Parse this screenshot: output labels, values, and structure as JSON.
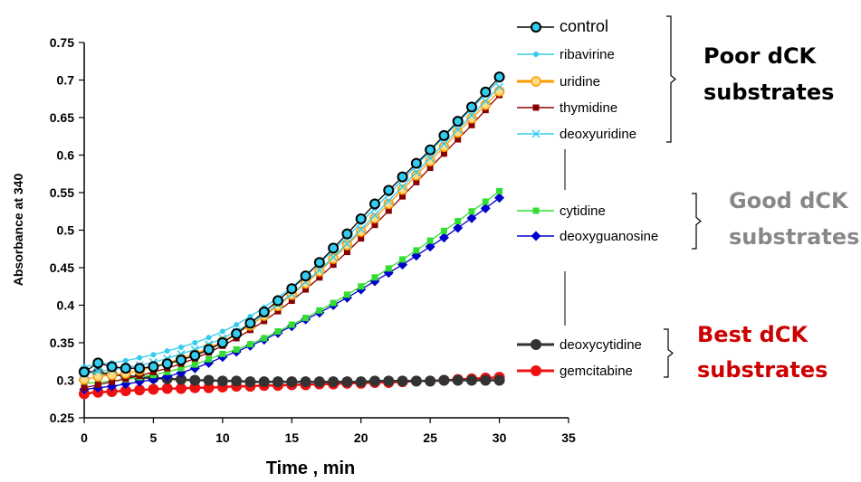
{
  "chart_data": {
    "type": "line",
    "xlabel": "Time , min",
    "ylabel": "Absorbance at 340",
    "xlim": [
      0,
      35
    ],
    "ylim": [
      0.25,
      0.75
    ],
    "xticks": [
      "0",
      "5",
      "10",
      "15",
      "20",
      "25",
      "30",
      "35"
    ],
    "yticks": [
      "0.25",
      "0.3",
      "0.35",
      "0.4",
      "0.45",
      "0.5",
      "0.55",
      "0.6",
      "0.65",
      "0.7",
      "0.75"
    ],
    "grid": false,
    "x": [
      0,
      1,
      2,
      3,
      4,
      5,
      6,
      7,
      8,
      9,
      10,
      11,
      12,
      13,
      14,
      15,
      16,
      17,
      18,
      19,
      20,
      21,
      22,
      23,
      24,
      25,
      26,
      27,
      28,
      29,
      30
    ],
    "series": [
      {
        "name": "control",
        "color": "#000000",
        "marker": "circle",
        "values": [
          0.311,
          0.323,
          0.318,
          0.316,
          0.316,
          0.318,
          0.322,
          0.327,
          0.333,
          0.341,
          0.35,
          0.362,
          0.376,
          0.391,
          0.406,
          0.422,
          0.439,
          0.457,
          0.476,
          0.495,
          0.515,
          0.535,
          0.553,
          0.571,
          0.589,
          0.607,
          0.626,
          0.645,
          0.664,
          0.684,
          0.704
        ]
      },
      {
        "name": "ribavirine",
        "color": "#33ccee",
        "marker": "small-circle",
        "values": [
          0.318,
          0.322,
          0.323,
          0.326,
          0.33,
          0.334,
          0.339,
          0.344,
          0.35,
          0.357,
          0.365,
          0.374,
          0.385,
          0.397,
          0.41,
          0.424,
          0.44,
          0.456,
          0.473,
          0.491,
          0.51,
          0.529,
          0.548,
          0.567,
          0.586,
          0.605,
          0.624,
          0.643,
          0.662,
          0.681,
          0.7
        ]
      },
      {
        "name": "uridine",
        "color": "#ff9900",
        "marker": "circle-orange",
        "values": [
          0.301,
          0.305,
          0.307,
          0.309,
          0.313,
          0.318,
          0.323,
          0.329,
          0.335,
          0.343,
          0.352,
          0.362,
          0.373,
          0.386,
          0.399,
          0.414,
          0.429,
          0.445,
          0.462,
          0.48,
          0.498,
          0.516,
          0.535,
          0.554,
          0.573,
          0.592,
          0.611,
          0.63,
          0.649,
          0.667,
          0.685
        ]
      },
      {
        "name": "thymidine",
        "color": "#880000",
        "marker": "square",
        "values": [
          0.29,
          0.294,
          0.298,
          0.302,
          0.306,
          0.311,
          0.316,
          0.322,
          0.329,
          0.337,
          0.346,
          0.356,
          0.367,
          0.379,
          0.392,
          0.406,
          0.421,
          0.437,
          0.454,
          0.471,
          0.489,
          0.507,
          0.526,
          0.545,
          0.564,
          0.583,
          0.602,
          0.621,
          0.64,
          0.66,
          0.68
        ]
      },
      {
        "name": "deoxyuridine",
        "color": "#33ccee",
        "marker": "cross",
        "values": [
          0.308,
          0.312,
          0.314,
          0.317,
          0.32,
          0.324,
          0.329,
          0.335,
          0.341,
          0.348,
          0.356,
          0.365,
          0.376,
          0.388,
          0.401,
          0.415,
          0.431,
          0.447,
          0.464,
          0.482,
          0.501,
          0.52,
          0.539,
          0.558,
          0.577,
          0.596,
          0.615,
          0.634,
          0.653,
          0.672,
          0.691
        ]
      },
      {
        "name": "cytidine",
        "color": "#33dd33",
        "marker": "square",
        "values": [
          0.296,
          0.297,
          0.299,
          0.301,
          0.304,
          0.307,
          0.311,
          0.316,
          0.321,
          0.328,
          0.335,
          0.341,
          0.348,
          0.356,
          0.365,
          0.374,
          0.383,
          0.393,
          0.403,
          0.414,
          0.425,
          0.437,
          0.449,
          0.461,
          0.473,
          0.486,
          0.499,
          0.512,
          0.525,
          0.538,
          0.552
        ]
      },
      {
        "name": "deoxyguanosine",
        "color": "#0000cc",
        "marker": "diamond",
        "values": [
          0.288,
          0.29,
          0.292,
          0.295,
          0.298,
          0.301,
          0.305,
          0.31,
          0.316,
          0.323,
          0.331,
          0.338,
          0.346,
          0.354,
          0.363,
          0.372,
          0.381,
          0.39,
          0.4,
          0.41,
          0.421,
          0.432,
          0.443,
          0.454,
          0.466,
          0.478,
          0.49,
          0.503,
          0.516,
          0.529,
          0.543
        ]
      },
      {
        "name": "deoxycytidine",
        "color": "#333333",
        "marker": "big-circle",
        "values": [
          0.312,
          0.31,
          0.308,
          0.306,
          0.304,
          0.303,
          0.302,
          0.301,
          0.3,
          0.3,
          0.299,
          0.299,
          0.298,
          0.298,
          0.298,
          0.298,
          0.298,
          0.298,
          0.298,
          0.298,
          0.298,
          0.299,
          0.299,
          0.299,
          0.299,
          0.299,
          0.3,
          0.3,
          0.3,
          0.3,
          0.3
        ]
      },
      {
        "name": "gemcitabine",
        "color": "#ee1111",
        "marker": "big-circle",
        "values": [
          0.282,
          0.284,
          0.285,
          0.286,
          0.287,
          0.288,
          0.289,
          0.289,
          0.29,
          0.29,
          0.291,
          0.292,
          0.292,
          0.293,
          0.293,
          0.294,
          0.294,
          0.295,
          0.295,
          0.296,
          0.296,
          0.297,
          0.297,
          0.298,
          0.299,
          0.299,
          0.3,
          0.301,
          0.302,
          0.303,
          0.304
        ]
      }
    ],
    "groups": [
      {
        "label_lines": [
          "Poor dCK",
          "substrates"
        ],
        "color": "#000000",
        "members": [
          "control",
          "ribavirine",
          "uridine",
          "thymidine",
          "deoxyuridine"
        ]
      },
      {
        "label_lines": [
          "Good dCK",
          "substrates"
        ],
        "color": "#888888",
        "members": [
          "cytidine",
          "deoxyguanosine"
        ]
      },
      {
        "label_lines": [
          "Best dCK",
          "substrates"
        ],
        "color": "#cc0000",
        "members": [
          "deoxycytidine",
          "gemcitabine"
        ]
      }
    ]
  }
}
